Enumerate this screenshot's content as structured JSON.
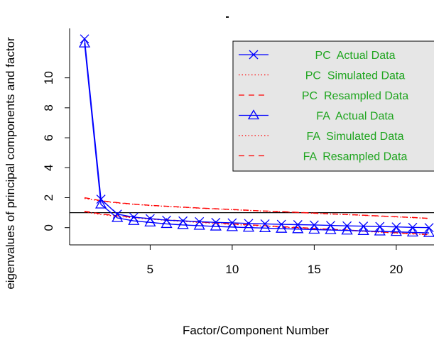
{
  "chart_data": {
    "type": "line",
    "title": "",
    "xlabel": "Factor/Component Number",
    "ylabel": "eigenvalues of principal components and factor",
    "xlim": [
      0.09,
      22.3
    ],
    "ylim": [
      -1.15,
      13.3
    ],
    "x_ticks": [
      5,
      10,
      15,
      20
    ],
    "x_tick_labels": [
      "5",
      "10",
      "15",
      "20"
    ],
    "y_ticks": [
      0,
      2,
      4,
      6,
      8,
      10
    ],
    "y_tick_labels": [
      "0",
      "2",
      "4",
      "6",
      "8",
      "10"
    ],
    "reference_line": 1,
    "grid": false,
    "legend_position": "top-right",
    "colors": {
      "blue": "#0000ff",
      "red": "#ff0000",
      "green": "#1fa51f",
      "legend_bg": "#e6e6e6"
    },
    "x": [
      1,
      2,
      3,
      4,
      5,
      6,
      7,
      8,
      9,
      10,
      11,
      12,
      13,
      14,
      15,
      16,
      17,
      18,
      19,
      20,
      21,
      22
    ],
    "series": [
      {
        "name": "PC  Actual Data",
        "line": "solid",
        "color": "#0000ff",
        "marker": "x",
        "values": [
          12.6,
          1.9,
          0.9,
          0.7,
          0.6,
          0.5,
          0.45,
          0.4,
          0.35,
          0.32,
          0.28,
          0.25,
          0.22,
          0.2,
          0.18,
          0.15,
          0.12,
          0.1,
          0.08,
          0.05,
          0.02,
          0.0
        ]
      },
      {
        "name": "PC  Simulated Data",
        "line": "dotted",
        "color": "#ff0000",
        "marker": "none",
        "values": [
          1.95,
          1.78,
          1.65,
          1.56,
          1.48,
          1.42,
          1.36,
          1.3,
          1.25,
          1.2,
          1.15,
          1.1,
          1.06,
          1.01,
          0.96,
          0.91,
          0.87,
          0.82,
          0.77,
          0.72,
          0.67,
          0.61
        ]
      },
      {
        "name": "PC  Resampled Data",
        "line": "dashed",
        "color": "#ff0000",
        "marker": "none",
        "values": [
          2.0,
          1.8,
          1.67,
          1.57,
          1.49,
          1.43,
          1.37,
          1.31,
          1.26,
          1.21,
          1.16,
          1.11,
          1.07,
          1.02,
          0.97,
          0.92,
          0.88,
          0.83,
          0.78,
          0.73,
          0.68,
          0.62
        ]
      },
      {
        "name": "FA  Actual Data",
        "line": "solid",
        "color": "#0000ff",
        "marker": "triangle",
        "values": [
          12.3,
          1.55,
          0.65,
          0.45,
          0.35,
          0.25,
          0.18,
          0.13,
          0.08,
          0.04,
          0.0,
          -0.03,
          -0.07,
          -0.1,
          -0.13,
          -0.16,
          -0.19,
          -0.22,
          -0.25,
          -0.28,
          -0.32,
          -0.35
        ]
      },
      {
        "name": "FA  Simulated Data",
        "line": "dotted",
        "color": "#ff0000",
        "marker": "none",
        "values": [
          1.05,
          0.88,
          0.76,
          0.66,
          0.57,
          0.49,
          0.42,
          0.35,
          0.28,
          0.22,
          0.16,
          0.1,
          0.04,
          -0.02,
          -0.07,
          -0.13,
          -0.18,
          -0.24,
          -0.3,
          -0.36,
          -0.42,
          -0.48
        ]
      },
      {
        "name": "FA  Resampled Data",
        "line": "dashed",
        "color": "#ff0000",
        "marker": "none",
        "values": [
          1.1,
          0.92,
          0.79,
          0.69,
          0.6,
          0.52,
          0.45,
          0.38,
          0.31,
          0.25,
          0.19,
          0.13,
          0.07,
          0.01,
          -0.05,
          -0.11,
          -0.16,
          -0.22,
          -0.28,
          -0.34,
          -0.4,
          -0.46
        ]
      }
    ]
  }
}
